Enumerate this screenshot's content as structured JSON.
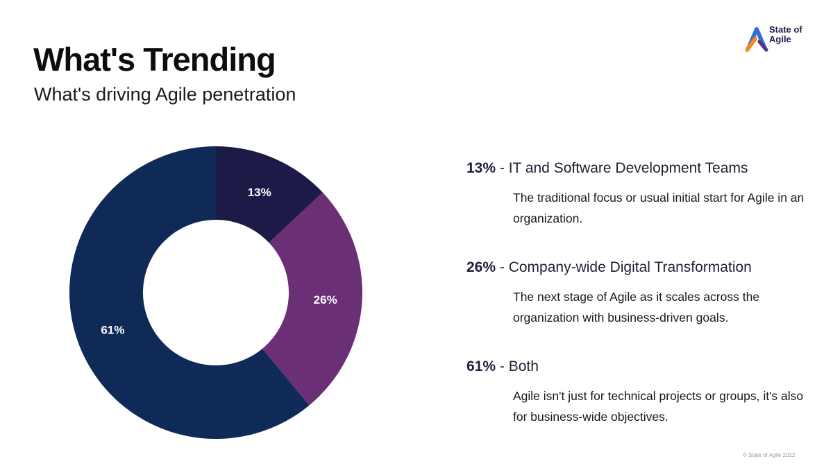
{
  "header": {
    "title": "What's Trending",
    "subtitle": "What's driving Agile penetration"
  },
  "logo": {
    "text": "State of\nAgile",
    "colors": {
      "blue": "#2f6fd6",
      "orange": "#f08a24",
      "purple": "#5a2d82"
    }
  },
  "chart_data": {
    "type": "pie",
    "donut": true,
    "categories": [
      "IT and Software Development Teams",
      "Company-wide Digital Transformation",
      "Both"
    ],
    "values": [
      13,
      26,
      61
    ],
    "labels": [
      "13%",
      "26%",
      "61%"
    ],
    "colors": [
      "#1e1a48",
      "#6a2f74",
      "#0f2a56"
    ],
    "start_angle_deg": 0,
    "direction": "clockwise"
  },
  "legend": [
    {
      "pct": "13%",
      "sep": " - ",
      "title": "IT and Software Development Teams",
      "desc": "The traditional focus or usual initial start for Agile in an organization."
    },
    {
      "pct": "26%",
      "sep": " - ",
      "title": "Company-wide Digital Transformation",
      "desc": "The next stage of Agile as it scales across the organization with business-driven goals."
    },
    {
      "pct": "61%",
      "sep": " - ",
      "title": "Both",
      "desc": "Agile isn't just for technical projects or groups, it's also for business-wide objectives."
    }
  ],
  "footer": "© State of Agile 2022"
}
